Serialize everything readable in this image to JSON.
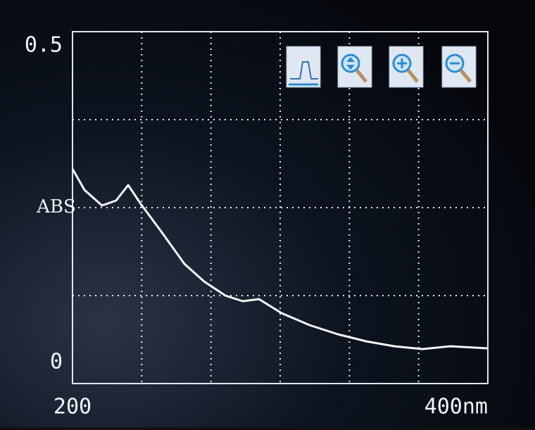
{
  "chart_data": {
    "type": "line",
    "x": [
      200,
      205.8,
      214.2,
      221,
      226.8,
      232.9,
      243,
      253.9,
      263.4,
      273.6,
      282,
      289.8,
      300.7,
      314.2,
      327.8,
      341.4,
      354.9,
      368.5,
      382,
      400
    ],
    "values": [
      0.305,
      0.275,
      0.253,
      0.26,
      0.282,
      0.255,
      0.215,
      0.17,
      0.145,
      0.125,
      0.117,
      0.12,
      0.1,
      0.083,
      0.07,
      0.06,
      0.053,
      0.049,
      0.053,
      0.05
    ],
    "color": "#f4f6fa",
    "ylabel": "ABS",
    "xlim": [
      200,
      400
    ],
    "ylim": [
      0,
      0.5
    ],
    "xticks": [
      200,
      {
        "value": 400,
        "label": "400nm"
      }
    ],
    "yticks": [
      0,
      0.5
    ],
    "grid": {
      "x_divisions": 6,
      "y_divisions": 4
    }
  }
}
